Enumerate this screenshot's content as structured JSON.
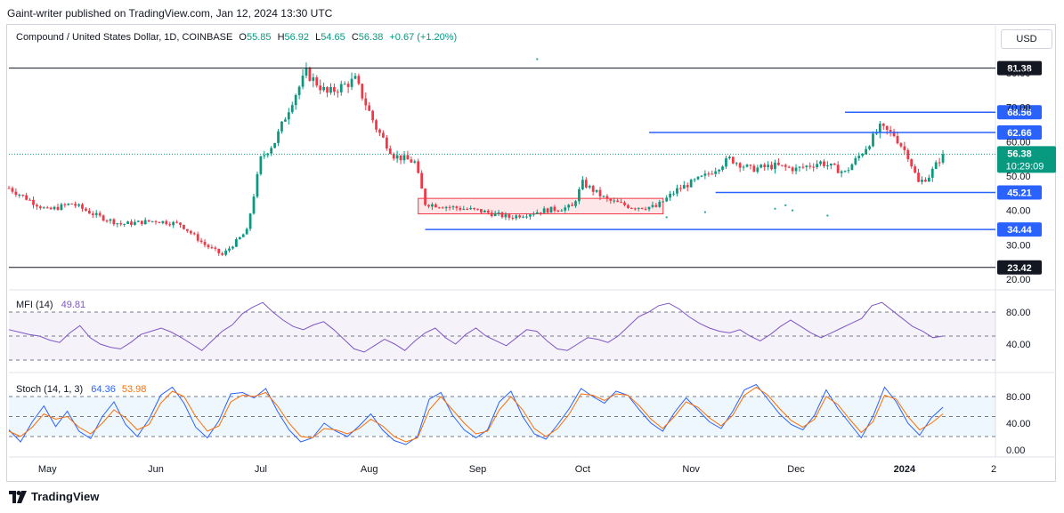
{
  "caption": "Gaint-writer published on TradingView.com, Jan 12, 2024 13:30 UTC",
  "branding": {
    "name": "TradingView",
    "icon": "tradingview-logo-icon"
  },
  "currency_button": "USD",
  "legend": {
    "symbol": "Compound / United States Dollar, 1D, COINBASE",
    "o_label": "O",
    "o": "55.85",
    "h_label": "H",
    "h": "56.92",
    "l_label": "L",
    "l": "54.65",
    "c_label": "C",
    "c": "56.38",
    "change": "+0.67 (+1.20%)"
  },
  "mfi_legend": {
    "label": "MFI (14)",
    "value": "49.81"
  },
  "stoch_legend": {
    "label": "Stoch (14, 1, 3)",
    "k": "64.36",
    "d": "53.98"
  },
  "colors": {
    "up": "#089981",
    "down": "#f23645",
    "level_blue": "#2962ff",
    "mfi": "#7e57c2",
    "stoch_k": "#2962ff",
    "stoch_d": "#ff6d00"
  },
  "chart_data": [
    {
      "type": "candlestick",
      "title": "Compound / United States Dollar, 1D, COINBASE",
      "x_ticks": [
        "May",
        "Jun",
        "Jul",
        "Aug",
        "Sep",
        "Oct",
        "Nov",
        "Dec",
        "2024",
        "2"
      ],
      "y_ticks": [
        "20.00",
        "30.00",
        "40.00",
        "50.00",
        "60.00",
        "70.00",
        "80.00"
      ],
      "ylim": [
        20,
        86
      ],
      "horizontal_levels": [
        {
          "label": "81.38",
          "value": 81.38,
          "color": "#131722"
        },
        {
          "label": "68.56",
          "value": 68.56,
          "color": "#2962ff"
        },
        {
          "label": "62.66",
          "value": 62.66,
          "color": "#2962ff"
        },
        {
          "label": "45.21",
          "value": 45.21,
          "color": "#2962ff"
        },
        {
          "label": "34.44",
          "value": 34.44,
          "color": "#2962ff"
        },
        {
          "label": "23.42",
          "value": 23.42,
          "color": "#131722"
        }
      ],
      "last_price": {
        "price": "56.38",
        "countdown": "10:29:09",
        "value": 56.38
      },
      "consolidation_zone": {
        "from": "Aug 15",
        "to": "Oct 24",
        "low": 39,
        "high": 43.5
      },
      "price_path": [
        [
          "Apr 20",
          46.5
        ],
        [
          "May 01",
          40
        ],
        [
          "May 08",
          42
        ],
        [
          "May 15",
          38.5
        ],
        [
          "May 22",
          36
        ],
        [
          "Jun 01",
          37
        ],
        [
          "Jun 08",
          36
        ],
        [
          "Jun 15",
          30
        ],
        [
          "Jun 20",
          27
        ],
        [
          "Jun 27",
          34
        ],
        [
          "Jul 01",
          55
        ],
        [
          "Jul 05",
          60
        ],
        [
          "Jul 10",
          72
        ],
        [
          "Jul 14",
          80
        ],
        [
          "Jul 20",
          74
        ],
        [
          "Jul 24",
          76
        ],
        [
          "Jul 28",
          78
        ],
        [
          "Aug 03",
          64
        ],
        [
          "Aug 08",
          56
        ],
        [
          "Aug 14",
          54
        ],
        [
          "Aug 17",
          42
        ],
        [
          "Aug 24",
          41
        ],
        [
          "Sep 01",
          40
        ],
        [
          "Sep 10",
          38
        ],
        [
          "Sep 20",
          40
        ],
        [
          "Sep 28",
          41
        ],
        [
          "Oct 01",
          48
        ],
        [
          "Oct 08",
          43
        ],
        [
          "Oct 15",
          41
        ],
        [
          "Oct 22",
          41
        ],
        [
          "Oct 28",
          46
        ],
        [
          "Nov 05",
          50
        ],
        [
          "Nov 12",
          55
        ],
        [
          "Nov 18",
          52
        ],
        [
          "Nov 25",
          53
        ],
        [
          "Dec 01",
          52
        ],
        [
          "Dec 08",
          54
        ],
        [
          "Dec 15",
          51
        ],
        [
          "Dec 20",
          57
        ],
        [
          "Dec 25",
          64
        ],
        [
          "Dec 29",
          62
        ],
        [
          "Jan 02",
          56
        ],
        [
          "Jan 05",
          48
        ],
        [
          "Jan 08",
          50
        ],
        [
          "Jan 12",
          56.38
        ]
      ]
    },
    {
      "type": "line",
      "title": "MFI (14)",
      "value": 49.81,
      "y_ticks": [
        "40.00",
        "80.00"
      ],
      "bands": [
        80,
        50,
        20
      ],
      "series": [
        {
          "name": "MFI (14)",
          "values": [
            58,
            55,
            52,
            50,
            45,
            42,
            54,
            63,
            48,
            40,
            36,
            34,
            42,
            52,
            56,
            60,
            55,
            48,
            40,
            32,
            44,
            56,
            64,
            78,
            86,
            92,
            80,
            70,
            62,
            58,
            64,
            68,
            58,
            46,
            34,
            30,
            38,
            46,
            40,
            32,
            44,
            54,
            60,
            48,
            40,
            52,
            60,
            50,
            44,
            38,
            48,
            58,
            56,
            44,
            34,
            32,
            40,
            48,
            46,
            42,
            50,
            62,
            74,
            80,
            88,
            91,
            84,
            74,
            66,
            60,
            56,
            54,
            58,
            50,
            44,
            52,
            62,
            70,
            62,
            54,
            48,
            54,
            60,
            66,
            72,
            88,
            92,
            82,
            72,
            62,
            56,
            48,
            50
          ]
        }
      ],
      "ylim": [
        5,
        95
      ]
    },
    {
      "type": "line",
      "title": "Stoch (14, 1, 3)",
      "y_ticks": [
        "0.00",
        "40.00",
        "80.00"
      ],
      "bands": [
        80,
        50,
        20
      ],
      "series": [
        {
          "name": "%K",
          "values": [
            30,
            12,
            42,
            66,
            35,
            58,
            28,
            17,
            50,
            72,
            38,
            20,
            46,
            82,
            94,
            70,
            34,
            18,
            44,
            84,
            86,
            78,
            92,
            58,
            30,
            12,
            18,
            40,
            28,
            20,
            36,
            54,
            30,
            14,
            8,
            20,
            76,
            86,
            52,
            30,
            18,
            30,
            72,
            88,
            50,
            24,
            16,
            38,
            62,
            92,
            80,
            70,
            88,
            82,
            60,
            40,
            28,
            56,
            78,
            60,
            42,
            32,
            58,
            90,
            98,
            76,
            54,
            38,
            30,
            52,
            90,
            62,
            40,
            18,
            50,
            94,
            72,
            40,
            22,
            48,
            64
          ]
        },
        {
          "name": "%D",
          "values": [
            28,
            20,
            34,
            54,
            46,
            50,
            34,
            24,
            40,
            60,
            48,
            30,
            38,
            70,
            88,
            80,
            50,
            28,
            36,
            72,
            82,
            80,
            86,
            66,
            40,
            20,
            18,
            32,
            30,
            24,
            32,
            46,
            36,
            20,
            12,
            18,
            60,
            80,
            60,
            40,
            24,
            28,
            60,
            80,
            60,
            32,
            20,
            32,
            54,
            84,
            82,
            74,
            84,
            82,
            66,
            46,
            32,
            50,
            72,
            64,
            48,
            36,
            52,
            82,
            94,
            82,
            62,
            44,
            34,
            46,
            80,
            68,
            46,
            26,
            42,
            82,
            76,
            50,
            30,
            40,
            54
          ]
        }
      ],
      "ylim": [
        -15,
        100
      ]
    }
  ]
}
